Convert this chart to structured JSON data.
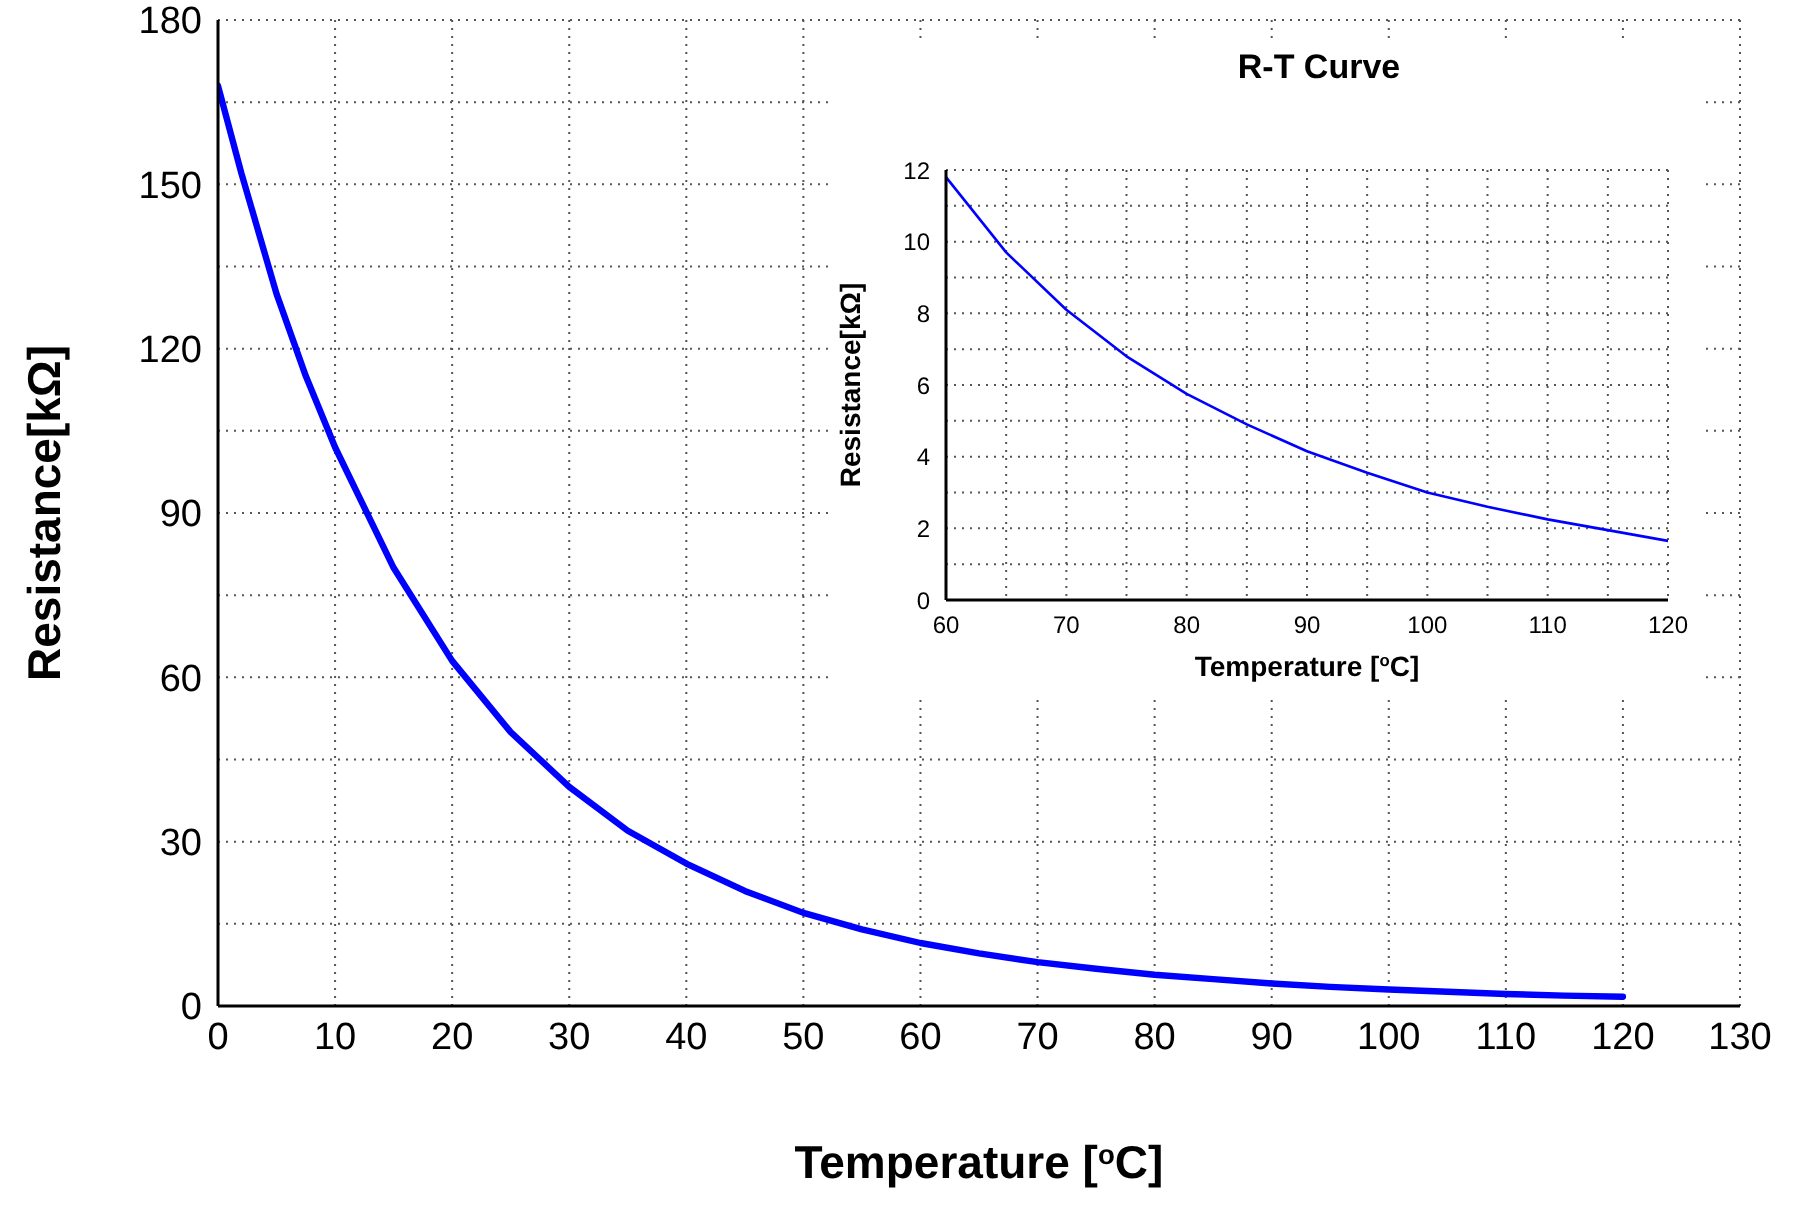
{
  "chart_data": [
    {
      "type": "line",
      "xlabel": "Temperature [$^{o}$C]",
      "ylabel": "Resistance[kΩ]",
      "grid": true,
      "x": [
        0,
        2,
        5,
        7.5,
        10,
        15,
        20,
        25,
        30,
        35,
        40,
        45,
        50,
        55,
        60,
        65,
        70,
        75,
        80,
        85,
        90,
        95,
        100,
        105,
        110,
        115,
        120
      ],
      "series": [
        {
          "color": "#0000ff",
          "values": [
            168,
            152,
            130,
            115,
            102,
            80,
            63,
            50,
            40,
            32,
            26,
            21,
            17,
            14,
            11.5,
            9.6,
            8,
            6.8,
            5.7,
            4.9,
            4.1,
            3.5,
            3,
            2.6,
            2.2,
            1.9,
            1.7
          ]
        }
      ],
      "xlim": [
        0,
        130
      ],
      "xticks": [
        0,
        10,
        20,
        30,
        40,
        50,
        60,
        70,
        80,
        90,
        100,
        110,
        120,
        130
      ],
      "ylim": [
        0,
        180
      ],
      "yticks": [
        0,
        {
          "value": 15,
          "label": null
        },
        30,
        {
          "value": 45,
          "label": null
        },
        60,
        {
          "value": 75,
          "label": null
        },
        90,
        {
          "value": 105,
          "label": null
        },
        120,
        {
          "value": 135,
          "label": null
        },
        150,
        {
          "value": 165,
          "label": null
        },
        180
      ]
    },
    {
      "type": "line",
      "title": "R-T Curve",
      "xlabel": "Temperature [$^{o}$C]",
      "ylabel": "Resistance[kΩ]",
      "grid": true,
      "x": [
        60,
        65,
        70,
        75,
        80,
        85,
        90,
        95,
        100,
        105,
        110,
        115,
        120
      ],
      "series": [
        {
          "color": "#0000ff",
          "values": [
            11.8,
            9.7,
            8.1,
            6.8,
            5.75,
            4.9,
            4.15,
            3.55,
            3,
            2.6,
            2.25,
            1.95,
            1.65
          ]
        }
      ],
      "xlim": [
        60,
        120
      ],
      "xticks": [
        60,
        {
          "value": 65,
          "label": null
        },
        70,
        {
          "value": 75,
          "label": null
        },
        80,
        {
          "value": 85,
          "label": null
        },
        90,
        {
          "value": 95,
          "label": null
        },
        100,
        {
          "value": 105,
          "label": null
        },
        110,
        {
          "value": 115,
          "label": null
        },
        120
      ],
      "ylim": [
        0,
        12
      ],
      "yticks": [
        0,
        {
          "value": 1,
          "label": null
        },
        2,
        {
          "value": 3,
          "label": null
        },
        4,
        {
          "value": 5,
          "label": null
        },
        6,
        {
          "value": 7,
          "label": null
        },
        8,
        {
          "value": 9,
          "label": null
        },
        10,
        {
          "value": 11,
          "label": null
        },
        12
      ]
    }
  ]
}
